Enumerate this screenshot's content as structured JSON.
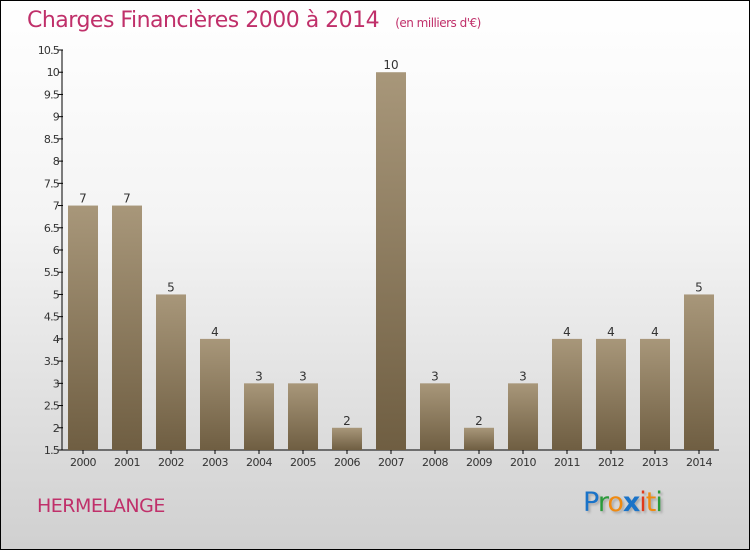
{
  "chart_data": {
    "type": "bar",
    "title": "Charges Financières 2000 à 2014",
    "subtitle": "(en milliers d'€)",
    "categories": [
      "2000",
      "2001",
      "2002",
      "2003",
      "2004",
      "2005",
      "2006",
      "2007",
      "2008",
      "2009",
      "2010",
      "2011",
      "2012",
      "2013",
      "2014"
    ],
    "values": [
      7,
      7,
      5,
      4,
      3,
      3,
      2,
      10,
      3,
      2,
      3,
      4,
      4,
      4,
      5
    ],
    "ylim": [
      1.5,
      10.5
    ],
    "yticks": [
      "1.5",
      "2",
      "2.5",
      "3",
      "3.5",
      "4",
      "4.5",
      "5",
      "5.5",
      "6",
      "6.5",
      "7",
      "7.5",
      "8",
      "8.5",
      "9",
      "9.5",
      "10",
      "10.5"
    ],
    "xlabel": "",
    "ylabel": "",
    "grid": false
  },
  "commune": "HERMELANGE",
  "logo": "Proxiti",
  "colors": {
    "title": "#c0306a",
    "bar_top": "#a8977a",
    "bar_bottom": "#6f5e42"
  }
}
